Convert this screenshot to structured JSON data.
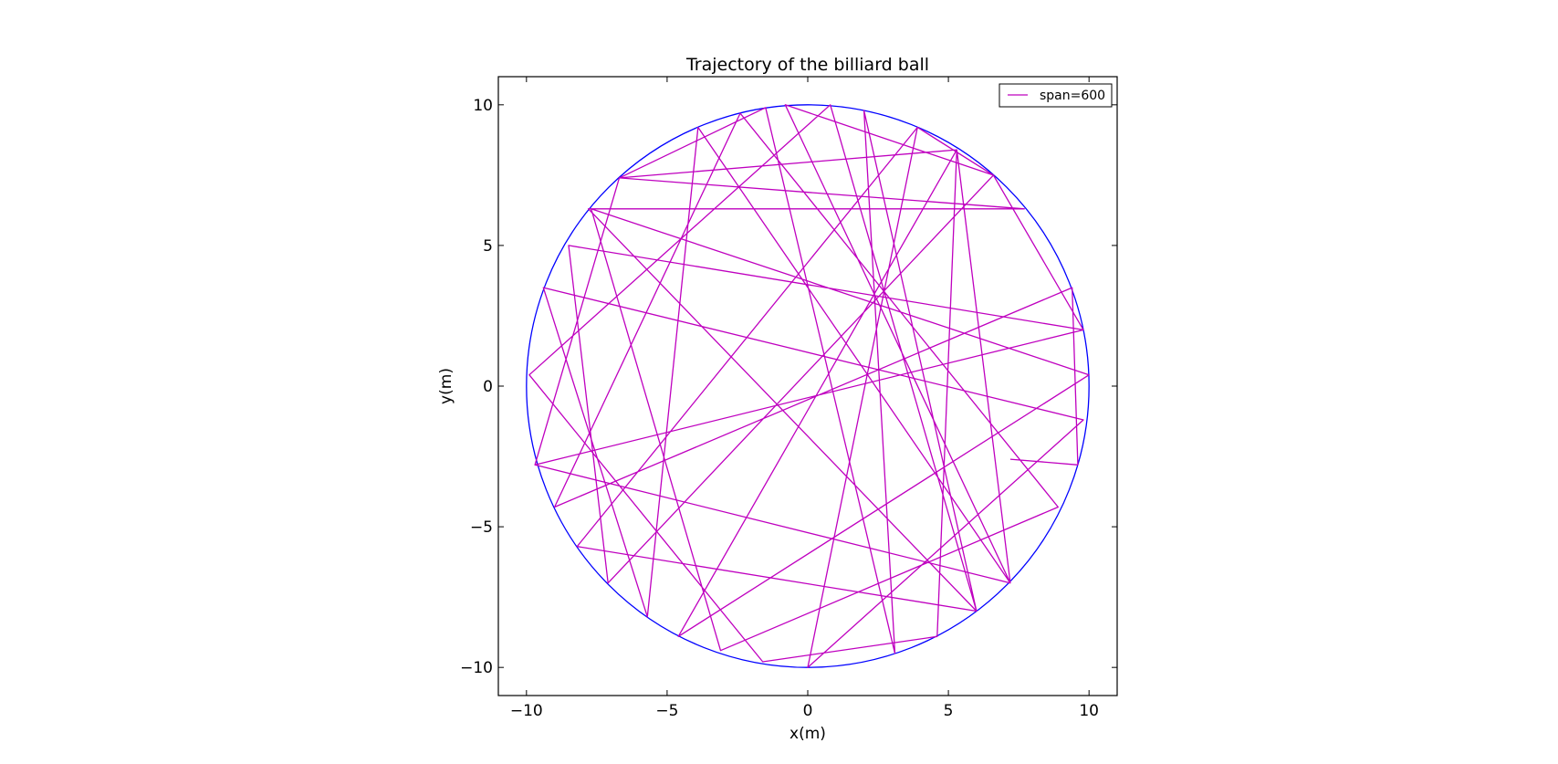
{
  "chart_data": {
    "type": "line",
    "title": "Trajectory of the billiard ball",
    "xlabel": "x(m)",
    "ylabel": "y(m)",
    "xlim": [
      -11,
      11
    ],
    "ylim": [
      -11,
      11
    ],
    "aspect": "equal",
    "grid": false,
    "legend_position": "top-right",
    "x_ticks": [
      -10,
      -5,
      0,
      5,
      10
    ],
    "y_ticks": [
      -10,
      -5,
      0,
      5,
      10
    ],
    "x_tick_labels": [
      "−10",
      "−5",
      "0",
      "5",
      "10"
    ],
    "y_tick_labels": [
      "−10",
      "−5",
      "0",
      "5",
      "10"
    ],
    "boundary": {
      "shape": "circle",
      "center": [
        0,
        0
      ],
      "radius": 10,
      "color": "#0000ff"
    },
    "series": [
      {
        "name": "span=600",
        "color": "#bf00bf",
        "trajectory_type": "chords tangent to inner circle",
        "inner_circle_radius": 2,
        "points": [
          [
            7.2,
            -2.6
          ],
          [
            9.6,
            -2.8
          ],
          [
            9.4,
            3.5
          ],
          [
            -9.0,
            -4.3
          ],
          [
            -2.4,
            9.7
          ],
          [
            8.9,
            -4.3
          ],
          [
            -3.1,
            -9.4
          ],
          [
            -7.7,
            6.3
          ],
          [
            10.0,
            0.4
          ],
          [
            -4.6,
            -8.9
          ],
          [
            5.3,
            8.4
          ],
          [
            4.6,
            -8.9
          ],
          [
            -1.6,
            -9.8
          ],
          [
            -9.9,
            0.4
          ],
          [
            0.8,
            10.0
          ],
          [
            6.0,
            -8.0
          ],
          [
            -7.8,
            6.3
          ],
          [
            7.7,
            6.3
          ],
          [
            -6.7,
            7.4
          ],
          [
            -9.7,
            -2.8
          ],
          [
            9.8,
            2.0
          ],
          [
            -8.5,
            5.0
          ],
          [
            -7.1,
            -7.0
          ],
          [
            6.6,
            7.5
          ],
          [
            -0.8,
            10.0
          ],
          [
            7.2,
            -7.0
          ],
          [
            -3.9,
            9.2
          ],
          [
            -5.7,
            -8.2
          ],
          [
            -9.4,
            3.5
          ],
          [
            9.8,
            -1.2
          ],
          [
            0.0,
            -10.0
          ],
          [
            3.9,
            9.2
          ],
          [
            -8.2,
            -5.7
          ],
          [
            6.0,
            -8.0
          ],
          [
            2.0,
            9.8
          ],
          [
            3.1,
            -9.5
          ],
          [
            -1.5,
            9.9
          ],
          [
            -6.7,
            7.4
          ],
          [
            5.3,
            8.4
          ],
          [
            7.2,
            -7.0
          ],
          [
            -9.7,
            -2.8
          ],
          [
            9.8,
            2.0
          ],
          [
            6.6,
            7.5
          ],
          [
            3.9,
            9.2
          ]
        ]
      }
    ]
  }
}
